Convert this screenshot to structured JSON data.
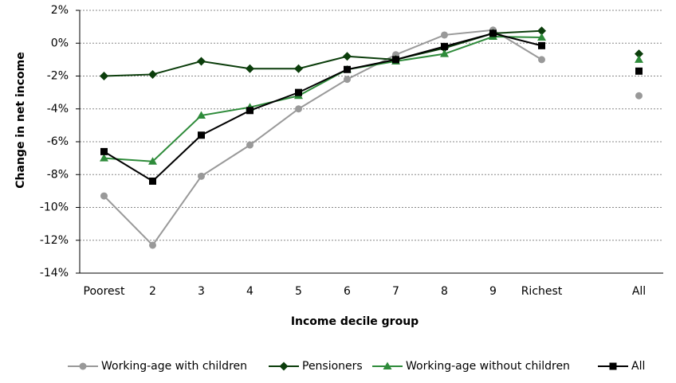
{
  "chart_data": {
    "type": "line",
    "x_label": "Income decile group",
    "y_label": "Change in net income",
    "categories": [
      "Poorest",
      "2",
      "3",
      "4",
      "5",
      "6",
      "7",
      "8",
      "9",
      "Richest",
      null,
      "All"
    ],
    "ylim": [
      -14,
      2
    ],
    "yticks": [
      {
        "value": 2,
        "label": "2%"
      },
      {
        "value": 0,
        "label": "0%"
      },
      {
        "value": -2,
        "label": "-2%"
      },
      {
        "value": -4,
        "label": "-4%"
      },
      {
        "value": -6,
        "label": "-6%"
      },
      {
        "value": -8,
        "label": "-8%"
      },
      {
        "value": -10,
        "label": "-10%"
      },
      {
        "value": -12,
        "label": "-12%"
      },
      {
        "value": -14,
        "label": "-14%"
      }
    ],
    "grid": true,
    "legend": "bottom",
    "series": [
      {
        "name": "Working-age with children",
        "color": "#999999",
        "marker": "circle",
        "values": [
          -9.3,
          -12.3,
          -8.1,
          -6.2,
          -4.0,
          -2.2,
          -0.7,
          0.5,
          0.8,
          -1.0,
          null,
          -3.2
        ]
      },
      {
        "name": "Pensioners",
        "color": "#0b3d0b",
        "marker": "diamond",
        "values": [
          -2.0,
          -1.9,
          -1.1,
          -1.55,
          -1.55,
          -0.8,
          -1.0,
          -0.3,
          0.6,
          0.75,
          null,
          -0.65
        ]
      },
      {
        "name": "Working-age without children",
        "color": "#2e8b3a",
        "marker": "triangle",
        "values": [
          -7.0,
          -7.2,
          -4.4,
          -3.9,
          -3.2,
          -1.6,
          -1.1,
          -0.65,
          0.4,
          0.35,
          null,
          -1.0
        ]
      },
      {
        "name": "All",
        "color": "#000000",
        "marker": "square",
        "values": [
          -6.6,
          -8.4,
          -5.6,
          -4.1,
          -3.0,
          -1.6,
          -1.0,
          -0.2,
          0.6,
          -0.15,
          null,
          -1.7
        ]
      }
    ]
  }
}
